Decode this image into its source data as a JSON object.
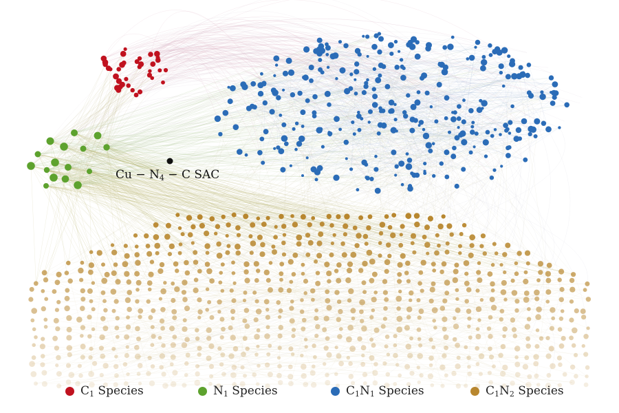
{
  "center_node": {
    "label_parts": [
      {
        "text": "Cu − N"
      },
      {
        "sub": "4"
      },
      {
        "text": " − C SAC"
      }
    ]
  },
  "legend": [
    {
      "key": "c1",
      "color": "#c0121f",
      "parts": [
        {
          "text": "C"
        },
        {
          "sub": "1"
        },
        {
          "text": " Species"
        }
      ]
    },
    {
      "key": "n1",
      "color": "#5da22e",
      "parts": [
        {
          "text": "N"
        },
        {
          "sub": "1"
        },
        {
          "text": " Species"
        }
      ]
    },
    {
      "key": "c1n1",
      "color": "#2b6cb7",
      "parts": [
        {
          "text": "C"
        },
        {
          "sub": "1"
        },
        {
          "text": "N"
        },
        {
          "sub": "1"
        },
        {
          "text": " Species"
        }
      ]
    },
    {
      "key": "c1n2",
      "color": "#b8872f",
      "parts": [
        {
          "text": "C"
        },
        {
          "sub": "1"
        },
        {
          "text": "N"
        },
        {
          "sub": "2"
        },
        {
          "text": " Species"
        }
      ]
    }
  ],
  "colors": {
    "c1": "#c0121f",
    "n1": "#5da22e",
    "c1n1": "#2b6cb7",
    "c1n2": "#b8872f",
    "center": "#111111"
  }
}
